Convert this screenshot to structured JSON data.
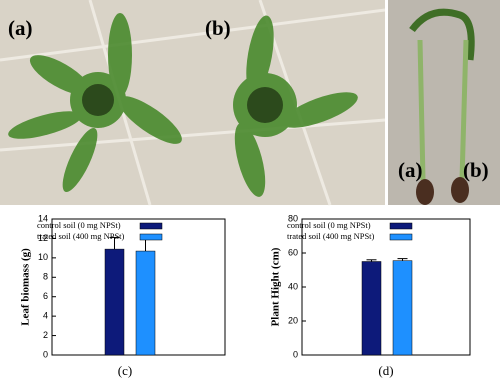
{
  "photo_labels": [
    "(a)",
    "(b)",
    "(a)",
    "(b)"
  ],
  "chart_data": [
    {
      "type": "bar",
      "y_label": "Leaf biomass (g)",
      "caption": "(c)",
      "ylim": [
        0,
        14
      ],
      "yticks": [
        0,
        2,
        4,
        6,
        8,
        10,
        12,
        14
      ],
      "series": [
        {
          "name": "control soil (0 mg NPSt)",
          "color": "#0d1a7a",
          "values": [
            10.9
          ],
          "errors": [
            1.2
          ]
        },
        {
          "name": "trated soil (400 mg NPSt)",
          "color": "#1e90ff",
          "values": [
            10.7
          ],
          "errors": [
            1.3
          ]
        }
      ]
    },
    {
      "type": "bar",
      "y_label": "Plant Hight (cm)",
      "caption": "(d)",
      "ylim": [
        0,
        80
      ],
      "yticks": [
        0,
        20,
        40,
        60,
        80
      ],
      "series": [
        {
          "name": "control soil (0 mg NPSt)",
          "color": "#0d1a7a",
          "values": [
            55
          ],
          "errors": [
            1
          ]
        },
        {
          "name": "trated soil (400 mg NPSt)",
          "color": "#1e90ff",
          "values": [
            55.5
          ],
          "errors": [
            1.2
          ]
        }
      ]
    }
  ]
}
